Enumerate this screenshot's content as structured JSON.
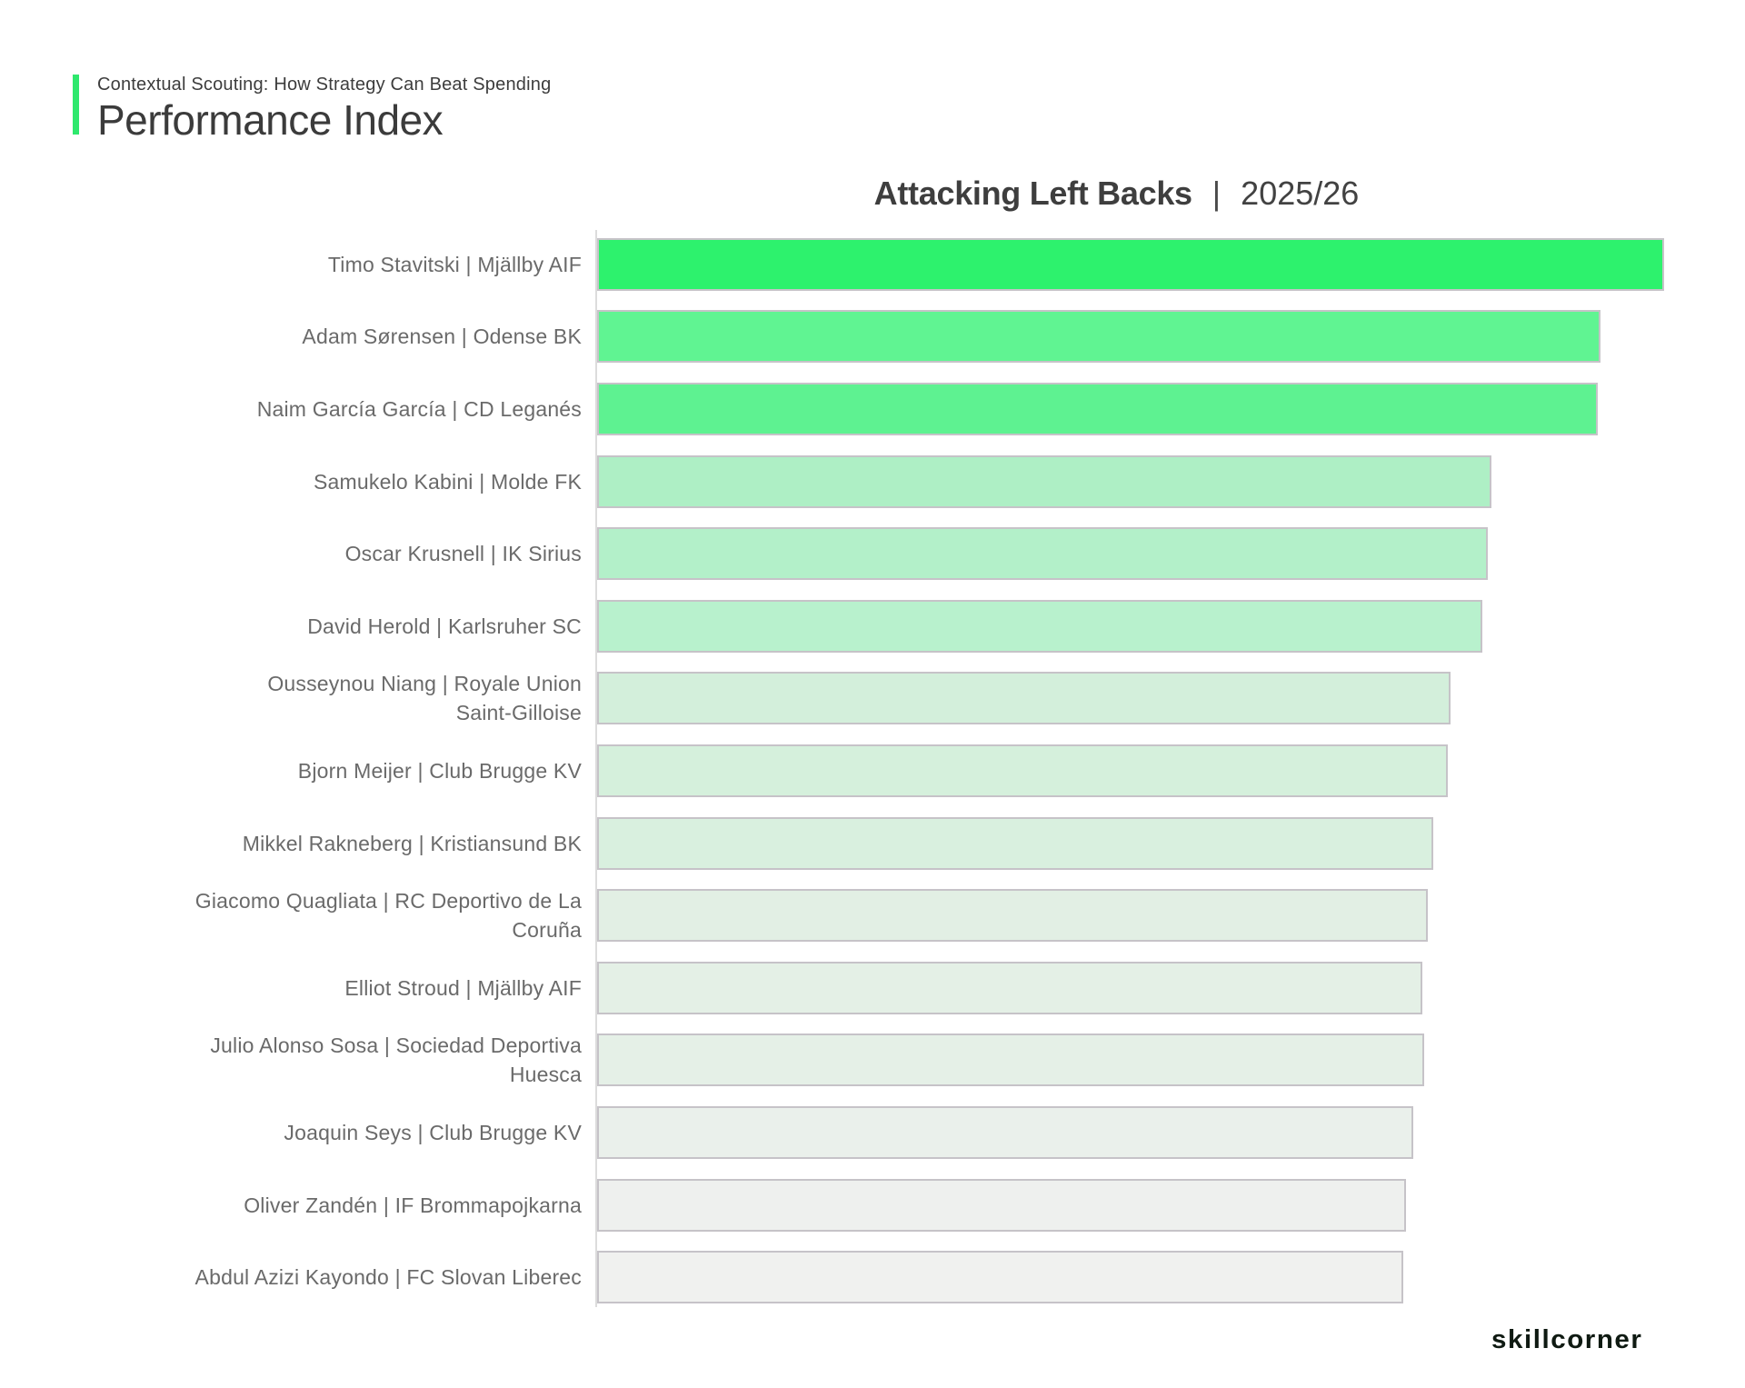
{
  "header": {
    "kicker": "Contextual Scouting: How Strategy Can Beat Spending",
    "title": "Performance Index",
    "accent_color": "#2ee86d"
  },
  "chart": {
    "title_bold": "Attacking Left Backs",
    "title_separator": "|",
    "title_season": "2025/26"
  },
  "chart_data": {
    "type": "bar",
    "orientation": "horizontal",
    "title": "Attacking Left Backs | 2025/26",
    "xlabel": "",
    "ylabel": "",
    "legend": "none",
    "grid": "off",
    "axis_note": "no numeric axis shown; values are relative bar lengths as % of longest bar",
    "categories": [
      "Timo Stavitski | Mjällby AIF",
      "Adam Sørensen | Odense BK",
      "Naim García García | CD Leganés",
      "Samukelo Kabini | Molde FK",
      "Oscar Krusnell | IK Sirius",
      "David Herold | Karlsruher SC",
      "Ousseynou Niang | Royale Union Saint-Gilloise",
      "Bjorn Meijer | Club Brugge KV",
      "Mikkel Rakneberg | Kristiansund BK",
      "Giacomo Quagliata | RC Deportivo de La Coruña",
      "Elliot Stroud | Mjällby AIF",
      "Julio Alonso Sosa | Sociedad Deportiva Huesca",
      "Joaquin Seys | Club Brugge KV",
      "Oliver Zandén | IF Brommapojkarna",
      "Abdul Azizi Kayondo | FC Slovan Liberec"
    ],
    "label_lines": [
      [
        "Timo Stavitski | Mjällby AIF"
      ],
      [
        "Adam Sørensen | Odense BK"
      ],
      [
        "Naim García García | CD Leganés"
      ],
      [
        "Samukelo Kabini | Molde FK"
      ],
      [
        "Oscar Krusnell | IK Sirius"
      ],
      [
        "David Herold | Karlsruher SC"
      ],
      [
        "Ousseynou Niang | Royale Union",
        "Saint-Gilloise"
      ],
      [
        "Bjorn Meijer | Club Brugge KV"
      ],
      [
        "Mikkel Rakneberg | Kristiansund BK"
      ],
      [
        "Giacomo Quagliata | RC Deportivo de La",
        "Coruña"
      ],
      [
        "Elliot Stroud | Mjällby AIF"
      ],
      [
        "Julio Alonso Sosa | Sociedad Deportiva",
        "Huesca"
      ],
      [
        "Joaquin Seys | Club Brugge KV"
      ],
      [
        "Oliver Zandén | IF Brommapojkarna"
      ],
      [
        "Abdul Azizi Kayondo | FC Slovan Liberec"
      ]
    ],
    "values": [
      100,
      94.0,
      93.8,
      83.8,
      83.4,
      82.9,
      79.9,
      79.7,
      78.3,
      77.8,
      77.3,
      77.4,
      76.4,
      75.7,
      75.5
    ],
    "bar_colors": [
      "#2df26d",
      "#60f492",
      "#5ef291",
      "#aeefc5",
      "#b3f0c9",
      "#b8f1cd",
      "#d3efdb",
      "#d5f0dc",
      "#d9f0df",
      "#e2efe4",
      "#e4f0e6",
      "#e5f0e7",
      "#eaf0eb",
      "#eef0ee",
      "#f0f1ef"
    ]
  },
  "footer": {
    "brand": "skillcorner"
  }
}
